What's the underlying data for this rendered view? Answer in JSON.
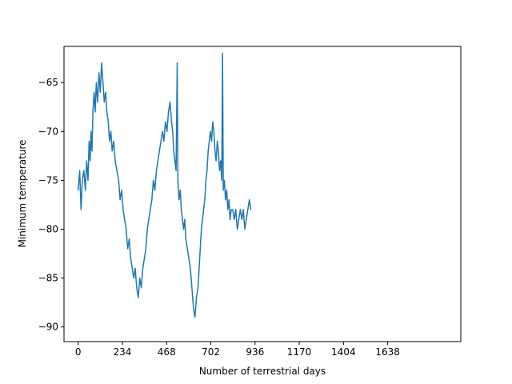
{
  "chart_data": {
    "type": "line",
    "title": "",
    "xlabel": "Number of terrestrial days",
    "ylabel": "Minimum temperature",
    "xlim": [
      -75,
      2025
    ],
    "ylim": [
      -91.5,
      -61.3
    ],
    "xticks": [
      0,
      234,
      468,
      702,
      936,
      1170,
      1404,
      1638
    ],
    "yticks": [
      -90,
      -85,
      -80,
      -75,
      -70,
      -65
    ],
    "grid": false,
    "line_color": "#1f77b4",
    "series": [
      {
        "name": "",
        "points": [
          [
            0,
            -76
          ],
          [
            8,
            -74
          ],
          [
            15,
            -78
          ],
          [
            22,
            -75
          ],
          [
            30,
            -74
          ],
          [
            38,
            -76
          ],
          [
            45,
            -73
          ],
          [
            52,
            -75
          ],
          [
            58,
            -71
          ],
          [
            63,
            -73
          ],
          [
            68,
            -70
          ],
          [
            73,
            -72
          ],
          [
            78,
            -68
          ],
          [
            84,
            -66
          ],
          [
            90,
            -68
          ],
          [
            96,
            -65
          ],
          [
            103,
            -67
          ],
          [
            110,
            -64
          ],
          [
            117,
            -66
          ],
          [
            124,
            -63
          ],
          [
            131,
            -65
          ],
          [
            138,
            -67
          ],
          [
            145,
            -66
          ],
          [
            152,
            -68
          ],
          [
            159,
            -69
          ],
          [
            166,
            -71
          ],
          [
            173,
            -70
          ],
          [
            180,
            -72
          ],
          [
            188,
            -71
          ],
          [
            196,
            -73
          ],
          [
            205,
            -74
          ],
          [
            214,
            -75
          ],
          [
            222,
            -77
          ],
          [
            230,
            -76
          ],
          [
            238,
            -78
          ],
          [
            246,
            -79
          ],
          [
            254,
            -80
          ],
          [
            262,
            -82
          ],
          [
            270,
            -81
          ],
          [
            278,
            -83
          ],
          [
            286,
            -84
          ],
          [
            294,
            -85
          ],
          [
            302,
            -84
          ],
          [
            310,
            -86
          ],
          [
            318,
            -87
          ],
          [
            326,
            -85
          ],
          [
            334,
            -86
          ],
          [
            342,
            -84
          ],
          [
            350,
            -83
          ],
          [
            358,
            -82
          ],
          [
            366,
            -80
          ],
          [
            374,
            -79
          ],
          [
            382,
            -78
          ],
          [
            390,
            -77
          ],
          [
            398,
            -75
          ],
          [
            406,
            -76
          ],
          [
            414,
            -74
          ],
          [
            422,
            -73
          ],
          [
            430,
            -72
          ],
          [
            438,
            -71
          ],
          [
            446,
            -70
          ],
          [
            454,
            -71
          ],
          [
            462,
            -69
          ],
          [
            470,
            -70
          ],
          [
            478,
            -68
          ],
          [
            486,
            -67
          ],
          [
            494,
            -69
          ],
          [
            500,
            -70
          ],
          [
            506,
            -72
          ],
          [
            512,
            -73
          ],
          [
            518,
            -74
          ],
          [
            524,
            -63
          ],
          [
            528,
            -75
          ],
          [
            534,
            -77
          ],
          [
            540,
            -76
          ],
          [
            546,
            -78
          ],
          [
            552,
            -79
          ],
          [
            558,
            -80
          ],
          [
            564,
            -79
          ],
          [
            570,
            -81
          ],
          [
            578,
            -82
          ],
          [
            586,
            -83
          ],
          [
            594,
            -84
          ],
          [
            602,
            -86
          ],
          [
            610,
            -88
          ],
          [
            618,
            -89
          ],
          [
            626,
            -87
          ],
          [
            634,
            -86
          ],
          [
            640,
            -84
          ],
          [
            646,
            -82
          ],
          [
            652,
            -80
          ],
          [
            658,
            -79
          ],
          [
            664,
            -78
          ],
          [
            670,
            -77
          ],
          [
            676,
            -75
          ],
          [
            682,
            -74
          ],
          [
            688,
            -72
          ],
          [
            694,
            -71
          ],
          [
            700,
            -70
          ],
          [
            706,
            -71
          ],
          [
            712,
            -69
          ],
          [
            718,
            -70
          ],
          [
            724,
            -72
          ],
          [
            730,
            -73
          ],
          [
            736,
            -71
          ],
          [
            742,
            -72
          ],
          [
            748,
            -74
          ],
          [
            754,
            -73
          ],
          [
            760,
            -75
          ],
          [
            764,
            -62
          ],
          [
            768,
            -76
          ],
          [
            774,
            -75
          ],
          [
            780,
            -77
          ],
          [
            786,
            -76
          ],
          [
            792,
            -78
          ],
          [
            798,
            -77
          ],
          [
            804,
            -79
          ],
          [
            810,
            -78
          ],
          [
            818,
            -78
          ],
          [
            826,
            -79
          ],
          [
            834,
            -78
          ],
          [
            842,
            -80
          ],
          [
            850,
            -79
          ],
          [
            858,
            -78
          ],
          [
            866,
            -79
          ],
          [
            874,
            -78
          ],
          [
            882,
            -80
          ],
          [
            890,
            -79
          ],
          [
            898,
            -78
          ],
          [
            906,
            -77
          ],
          [
            914,
            -78
          ]
        ]
      }
    ]
  }
}
